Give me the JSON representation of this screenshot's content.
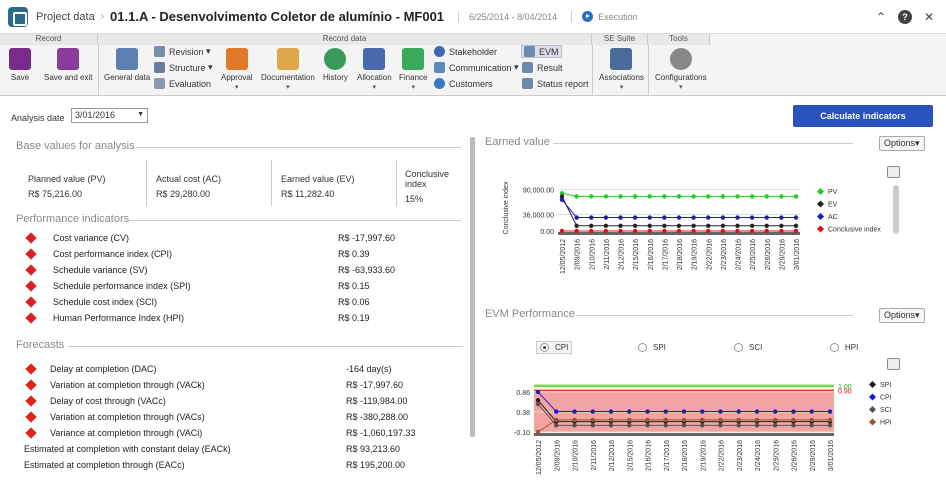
{
  "app": {
    "breadcrumb": "Project data",
    "title": "01.1.A - Desenvolvimento Coletor de alumínio - MF001",
    "dates": "6/25/2014 - 8/04/2014",
    "status": "Execution"
  },
  "ribbon": {
    "groups": [
      "Record",
      "Record data",
      "SE Suite",
      "Tools"
    ],
    "save": "Save",
    "save_exit": "Save and exit",
    "general": "General data",
    "revision": "Revision",
    "structure": "Structure",
    "evaluation": "Evaluation",
    "approval": "Approval",
    "documentation": "Documentation",
    "history": "History",
    "allocation": "Allocation",
    "finance": "Finance",
    "stakeholder": "Stakeholder",
    "communication": "Communication",
    "customers": "Customers",
    "evm": "EVM",
    "result": "Result",
    "status_report": "Status report",
    "associations": "Associations",
    "configurations": "Configurations"
  },
  "analysis": {
    "label": "Analysis date",
    "value": "3/01/2016",
    "calc_button": "Calculate indicators"
  },
  "base": {
    "title": "Base values for analysis",
    "items": [
      {
        "label": "Planned value (PV)",
        "value": "R$ 75,216.00"
      },
      {
        "label": "Actual cost (AC)",
        "value": "R$ 29,280.00"
      },
      {
        "label": "Earned value (EV)",
        "value": "R$ 11,282.40"
      },
      {
        "label": "Conclusive index",
        "value": "15%"
      }
    ]
  },
  "performance": {
    "title": "Performance indicators",
    "rows": [
      {
        "label": "Cost variance (CV)",
        "value": "R$ -17,997.60"
      },
      {
        "label": "Cost performance index (CPI)",
        "value": "R$ 0.39"
      },
      {
        "label": "Schedule variance (SV)",
        "value": "R$ -63,933.60"
      },
      {
        "label": "Schedule performance index (SPI)",
        "value": "R$ 0.15"
      },
      {
        "label": "Schedule cost index (SCI)",
        "value": "R$ 0.06"
      },
      {
        "label": "Human Performance Index (HPI)",
        "value": "R$ 0.19"
      }
    ]
  },
  "forecasts": {
    "title": "Forecasts",
    "rows": [
      {
        "label": "Delay at completion (DAC)",
        "value": "-164 day(s)"
      },
      {
        "label": "Variation at completion through (VACk)",
        "value": "R$ -17,997.60"
      },
      {
        "label": "Delay of cost through (VACc)",
        "value": "R$ -119,984.00"
      },
      {
        "label": "Variation at completion through (VACs)",
        "value": "R$ -380,288.00"
      },
      {
        "label": "Variance at completion through (VACi)",
        "value": "R$ -1,060,197.33"
      },
      {
        "label": "Estimated at completion with constant delay (EACk)",
        "value": "R$ 93,213.60"
      },
      {
        "label": "Estimated at completion through (EACc)",
        "value": "R$ 195,200.00"
      }
    ]
  },
  "earned_panel": {
    "title": "Earned value",
    "options": "Options"
  },
  "evm_panel": {
    "title": "EVM Performance",
    "options": "Options",
    "radios": [
      "CPI",
      "SPI",
      "SCI",
      "HPI"
    ],
    "selected": "CPI"
  },
  "chart_data": [
    {
      "type": "line",
      "ylabel": "Conclusive index",
      "y_ticks": [
        "90,000.00",
        "36,000.00",
        "0.00"
      ],
      "x": [
        "12/05/2012",
        "2/09/2016",
        "2/10/2016",
        "2/11/2016",
        "2/12/2016",
        "2/15/2016",
        "2/16/2016",
        "2/17/2016",
        "2/18/2016",
        "2/19/2016",
        "2/22/2016",
        "2/23/2016",
        "2/24/2016",
        "2/25/2016",
        "2/26/2016",
        "2/29/2016",
        "3/01/2016"
      ],
      "ylim": [
        0,
        100000
      ],
      "series": [
        {
          "name": "PV",
          "color": "#22cc22",
          "values": [
            82000,
            75216,
            75216,
            75216,
            75216,
            75216,
            75216,
            75216,
            75216,
            75216,
            75216,
            75216,
            75216,
            75216,
            75216,
            75216,
            75216
          ]
        },
        {
          "name": "EV",
          "color": "#222222",
          "values": [
            75000,
            11282,
            11282,
            11282,
            11282,
            11282,
            11282,
            11282,
            11282,
            11282,
            11282,
            11282,
            11282,
            11282,
            11282,
            11282,
            11282
          ]
        },
        {
          "name": "AC",
          "color": "#1a1ad0",
          "values": [
            68000,
            29280,
            29280,
            29280,
            29280,
            29280,
            29280,
            29280,
            29280,
            29280,
            29280,
            29280,
            29280,
            29280,
            29280,
            29280,
            29280
          ]
        },
        {
          "name": "Conclusive index",
          "color": "#dd1111",
          "values": [
            0,
            0,
            0,
            0,
            0,
            0,
            0,
            0,
            0,
            0,
            0,
            0,
            0,
            0,
            0,
            0,
            0
          ]
        }
      ],
      "legend": "right"
    },
    {
      "type": "line",
      "y_ticks": [
        "0.86",
        "0.38",
        "-0.10"
      ],
      "x": [
        "12/05/2012",
        "2/09/2016",
        "2/10/2016",
        "2/11/2016",
        "2/12/2016",
        "2/15/2016",
        "2/16/2016",
        "2/17/2016",
        "2/18/2016",
        "2/19/2016",
        "2/22/2016",
        "2/23/2016",
        "2/24/2016",
        "2/25/2016",
        "2/26/2016",
        "2/29/2016",
        "3/01/2016"
      ],
      "ylim": [
        -0.1,
        1.05
      ],
      "bands": [
        {
          "from": -0.1,
          "to": 0.9,
          "color": "#f4a3a3"
        },
        {
          "from": 0.9,
          "to": 1.0,
          "color": "#fff8c0"
        },
        {
          "from": 1.0,
          "to": 1.05,
          "color": "#c6f0a0"
        }
      ],
      "thresholds": [
        {
          "label": "1.00",
          "value": 1.0,
          "color": "#22aa22"
        },
        {
          "label": "0.90",
          "value": 0.9,
          "color": "#dd1111"
        }
      ],
      "series": [
        {
          "name": "SPI",
          "color": "#222222",
          "values": [
            0.66,
            0.15,
            0.15,
            0.15,
            0.15,
            0.15,
            0.15,
            0.15,
            0.15,
            0.15,
            0.15,
            0.15,
            0.15,
            0.15,
            0.15,
            0.15,
            0.15
          ]
        },
        {
          "name": "CPI",
          "color": "#1a1ad0",
          "values": [
            0.86,
            0.39,
            0.39,
            0.39,
            0.39,
            0.39,
            0.39,
            0.39,
            0.39,
            0.39,
            0.39,
            0.39,
            0.39,
            0.39,
            0.39,
            0.39,
            0.39
          ]
        },
        {
          "name": "SCI",
          "color": "#555555",
          "values": [
            0.57,
            0.06,
            0.06,
            0.06,
            0.06,
            0.06,
            0.06,
            0.06,
            0.06,
            0.06,
            0.06,
            0.06,
            0.06,
            0.06,
            0.06,
            0.06,
            0.06
          ]
        },
        {
          "name": "HPI",
          "color": "#a0522d",
          "values": [
            -0.1,
            0.19,
            0.19,
            0.19,
            0.19,
            0.19,
            0.19,
            0.19,
            0.19,
            0.19,
            0.19,
            0.19,
            0.19,
            0.19,
            0.19,
            0.19,
            0.19
          ]
        }
      ],
      "legend": "right"
    }
  ]
}
